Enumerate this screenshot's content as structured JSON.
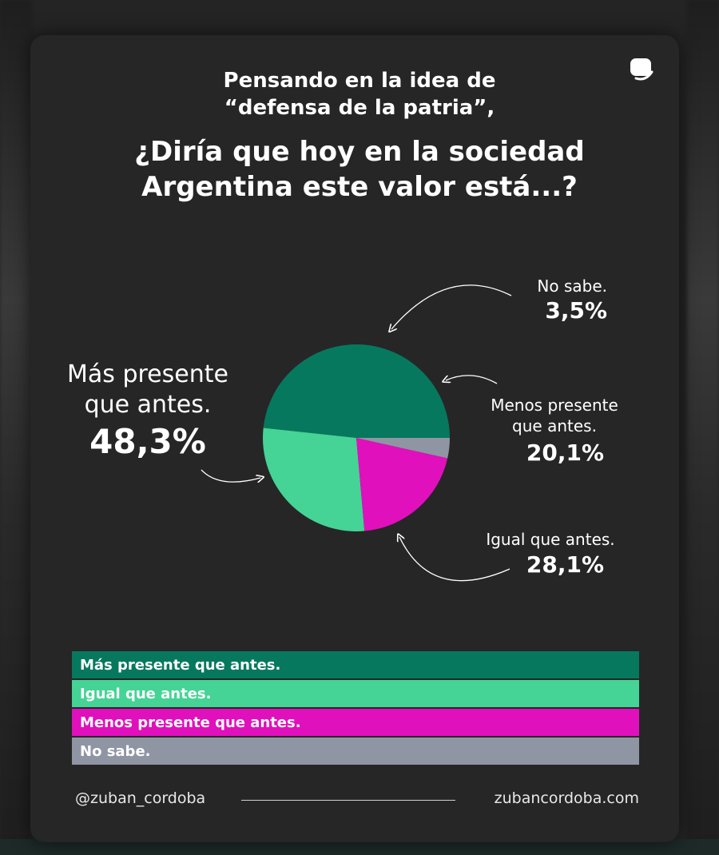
{
  "title_line1": "Pensando en la idea de",
  "title_line2": "“defensa de la patria”,",
  "title_line3": "¿Diría que hoy en la sociedad",
  "title_line4": "Argentina este valor está...?",
  "corner_icon": "speech-bubble-icon",
  "chart_data": {
    "type": "pie",
    "title": "¿Diría que hoy en la sociedad Argentina este valor está...?",
    "start_angle_deg": 0,
    "direction": "counterclockwise",
    "slices": [
      {
        "label": "Más presente que antes.",
        "label_lines": [
          "Más presente",
          "que antes."
        ],
        "value": 48.3,
        "value_label": "48,3%",
        "color": "#06785e"
      },
      {
        "label": "Igual que antes.",
        "label_lines": [
          "Igual que antes."
        ],
        "value": 28.1,
        "value_label": "28,1%",
        "color": "#45d396"
      },
      {
        "label": "Menos presente que antes.",
        "label_lines": [
          "Menos presente",
          "que antes."
        ],
        "value": 20.1,
        "value_label": "20,1%",
        "color": "#e010bc"
      },
      {
        "label": "No sabe.",
        "label_lines": [
          "No sabe."
        ],
        "value": 3.5,
        "value_label": "3,5%",
        "color": "#8f95a3"
      }
    ],
    "legend": [
      {
        "label": "Más presente que antes.",
        "color": "#06785e"
      },
      {
        "label": "Igual que antes.",
        "color": "#45d396"
      },
      {
        "label": "Menos presente que antes.",
        "color": "#e010bc"
      },
      {
        "label": "No sabe.",
        "color": "#8f95a3"
      }
    ]
  },
  "footer": {
    "handle": "@zuban_cordoba",
    "website": "zubancordoba.com"
  }
}
